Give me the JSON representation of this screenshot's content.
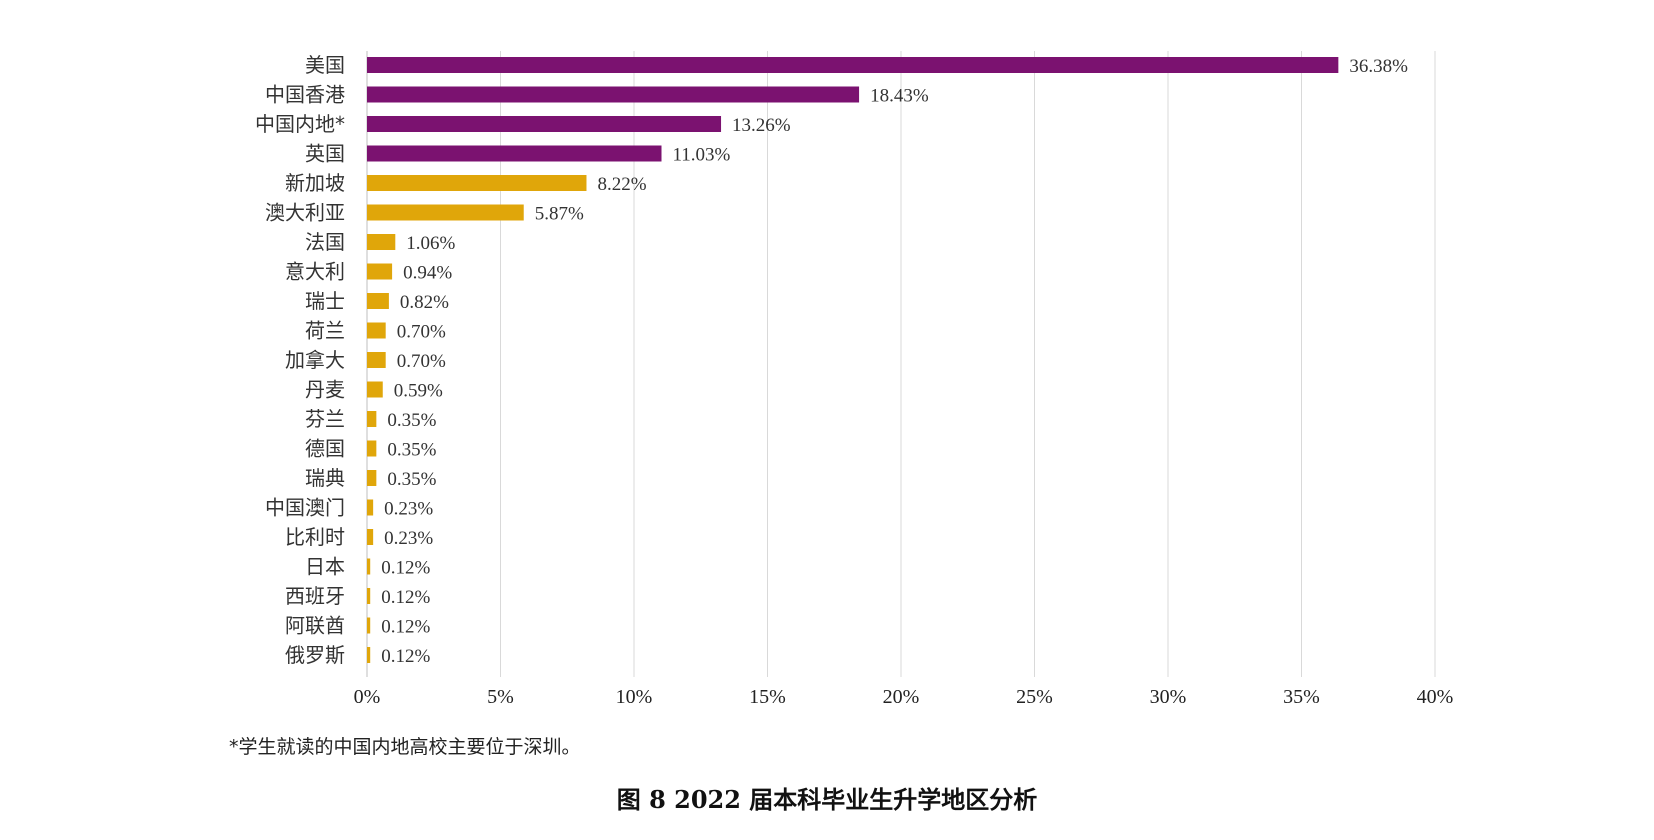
{
  "chart_data": {
    "type": "bar",
    "orientation": "horizontal",
    "categories": [
      "美国",
      "中国香港",
      "中国内地*",
      "英国",
      "新加坡",
      "澳大利亚",
      "法国",
      "意大利",
      "瑞士",
      "荷兰",
      "加拿大",
      "丹麦",
      "芬兰",
      "德国",
      "瑞典",
      "中国澳门",
      "比利时",
      "日本",
      "西班牙",
      "阿联酋",
      "俄罗斯"
    ],
    "values": [
      36.38,
      18.43,
      13.26,
      11.03,
      8.22,
      5.87,
      1.06,
      0.94,
      0.82,
      0.7,
      0.7,
      0.59,
      0.35,
      0.35,
      0.35,
      0.23,
      0.23,
      0.12,
      0.12,
      0.12,
      0.12
    ],
    "value_labels": [
      "36.38%",
      "18.43%",
      "13.26%",
      "11.03%",
      "8.22%",
      "5.87%",
      "1.06%",
      "0.94%",
      "0.82%",
      "0.70%",
      "0.70%",
      "0.59%",
      "0.35%",
      "0.35%",
      "0.35%",
      "0.23%",
      "0.23%",
      "0.12%",
      "0.12%",
      "0.12%",
      "0.12%"
    ],
    "colors": [
      "#7b1270",
      "#7b1270",
      "#7b1270",
      "#7b1270",
      "#e0a60a",
      "#e0a60a",
      "#e0a60a",
      "#e0a60a",
      "#e0a60a",
      "#e0a60a",
      "#e0a60a",
      "#e0a60a",
      "#e0a60a",
      "#e0a60a",
      "#e0a60a",
      "#e0a60a",
      "#e0a60a",
      "#e0a60a",
      "#e0a60a",
      "#e0a60a",
      "#e0a60a"
    ],
    "xlim": [
      0,
      40
    ],
    "xticks": [
      0,
      5,
      10,
      15,
      20,
      25,
      30,
      35,
      40
    ],
    "xtick_labels": [
      "0%",
      "5%",
      "10%",
      "15%",
      "20%",
      "25%",
      "30%",
      "35%",
      "40%"
    ],
    "grid": true,
    "title": "",
    "xlabel": "",
    "ylabel": ""
  },
  "footnote": "*学生就读的中国内地高校主要位于深圳。",
  "caption": "图 8  2022 届本科毕业生升学地区分析"
}
